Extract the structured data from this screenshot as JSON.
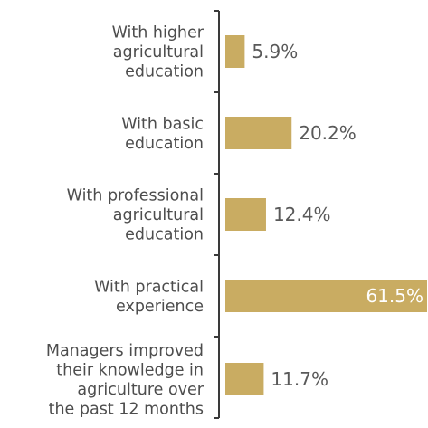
{
  "chart_data": {
    "type": "bar",
    "orientation": "horizontal",
    "categories": [
      "With higher agricultural education",
      "With basic education",
      "With professional agricultural education",
      "With practical experience",
      "Managers improved their knowledge in agriculture over the past 12 months"
    ],
    "category_lines": [
      [
        "With higher",
        "agricultural",
        "education"
      ],
      [
        "With basic",
        "education"
      ],
      [
        "With professional",
        "agricultural",
        "education"
      ],
      [
        "With practical",
        "experience"
      ],
      [
        "Managers improved",
        "their knowledge in",
        "agriculture over",
        "the past 12 months"
      ]
    ],
    "values": [
      5.9,
      20.2,
      12.4,
      61.5,
      11.7
    ],
    "value_labels": [
      "5.9%",
      "20.2%",
      "12.4%",
      "61.5%",
      "11.7%"
    ],
    "unit": "%",
    "xlim": [
      0,
      61.5
    ],
    "grid": false,
    "legend": "none",
    "colors": {
      "bar": "#c9ac62",
      "axis": "#3a3a3a",
      "category_text": "#4d4d4d",
      "value_text": "#595959",
      "value_text_inside": "#ffffff"
    }
  }
}
